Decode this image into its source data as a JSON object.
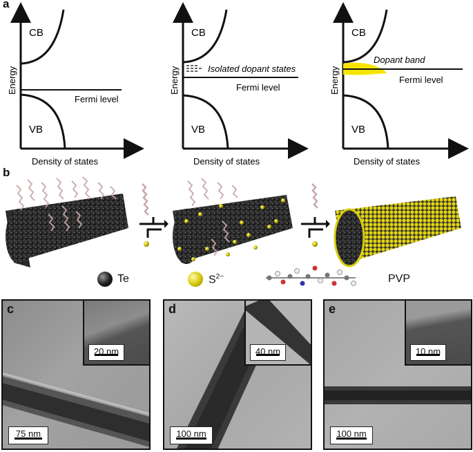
{
  "panels": {
    "a": {
      "letter": "a",
      "diagrams": [
        {
          "cb": "CB",
          "vb": "VB",
          "energy": "Energy",
          "dos": "Density of states",
          "fermi": "Fermi level"
        },
        {
          "cb": "CB",
          "vb": "VB",
          "energy": "Energy",
          "dos": "Density of states",
          "fermi": "Fermi level",
          "dopant": "Isolated dopant states"
        },
        {
          "cb": "CB",
          "vb": "VB",
          "energy": "Energy",
          "dos": "Density of states",
          "fermi": "Fermi level",
          "dopant": "Dopant band"
        }
      ],
      "colors": {
        "dopant_band": "#f5e400"
      }
    },
    "b": {
      "letter": "b",
      "legend": {
        "te": "Te",
        "s": "S",
        "s_charge": "2−",
        "pvp": "PVP"
      },
      "colors": {
        "te": "#222222",
        "sulfur": "#d8cc10",
        "pvp": "#c8a8a8"
      }
    },
    "c": {
      "letter": "c",
      "scale_main": "75 nm",
      "scale_inset": "20 nm"
    },
    "d": {
      "letter": "d",
      "scale_main": "100 nm",
      "scale_inset": "40 nm"
    },
    "e": {
      "letter": "e",
      "scale_main": "100 nm",
      "scale_inset": "10 nm"
    }
  }
}
